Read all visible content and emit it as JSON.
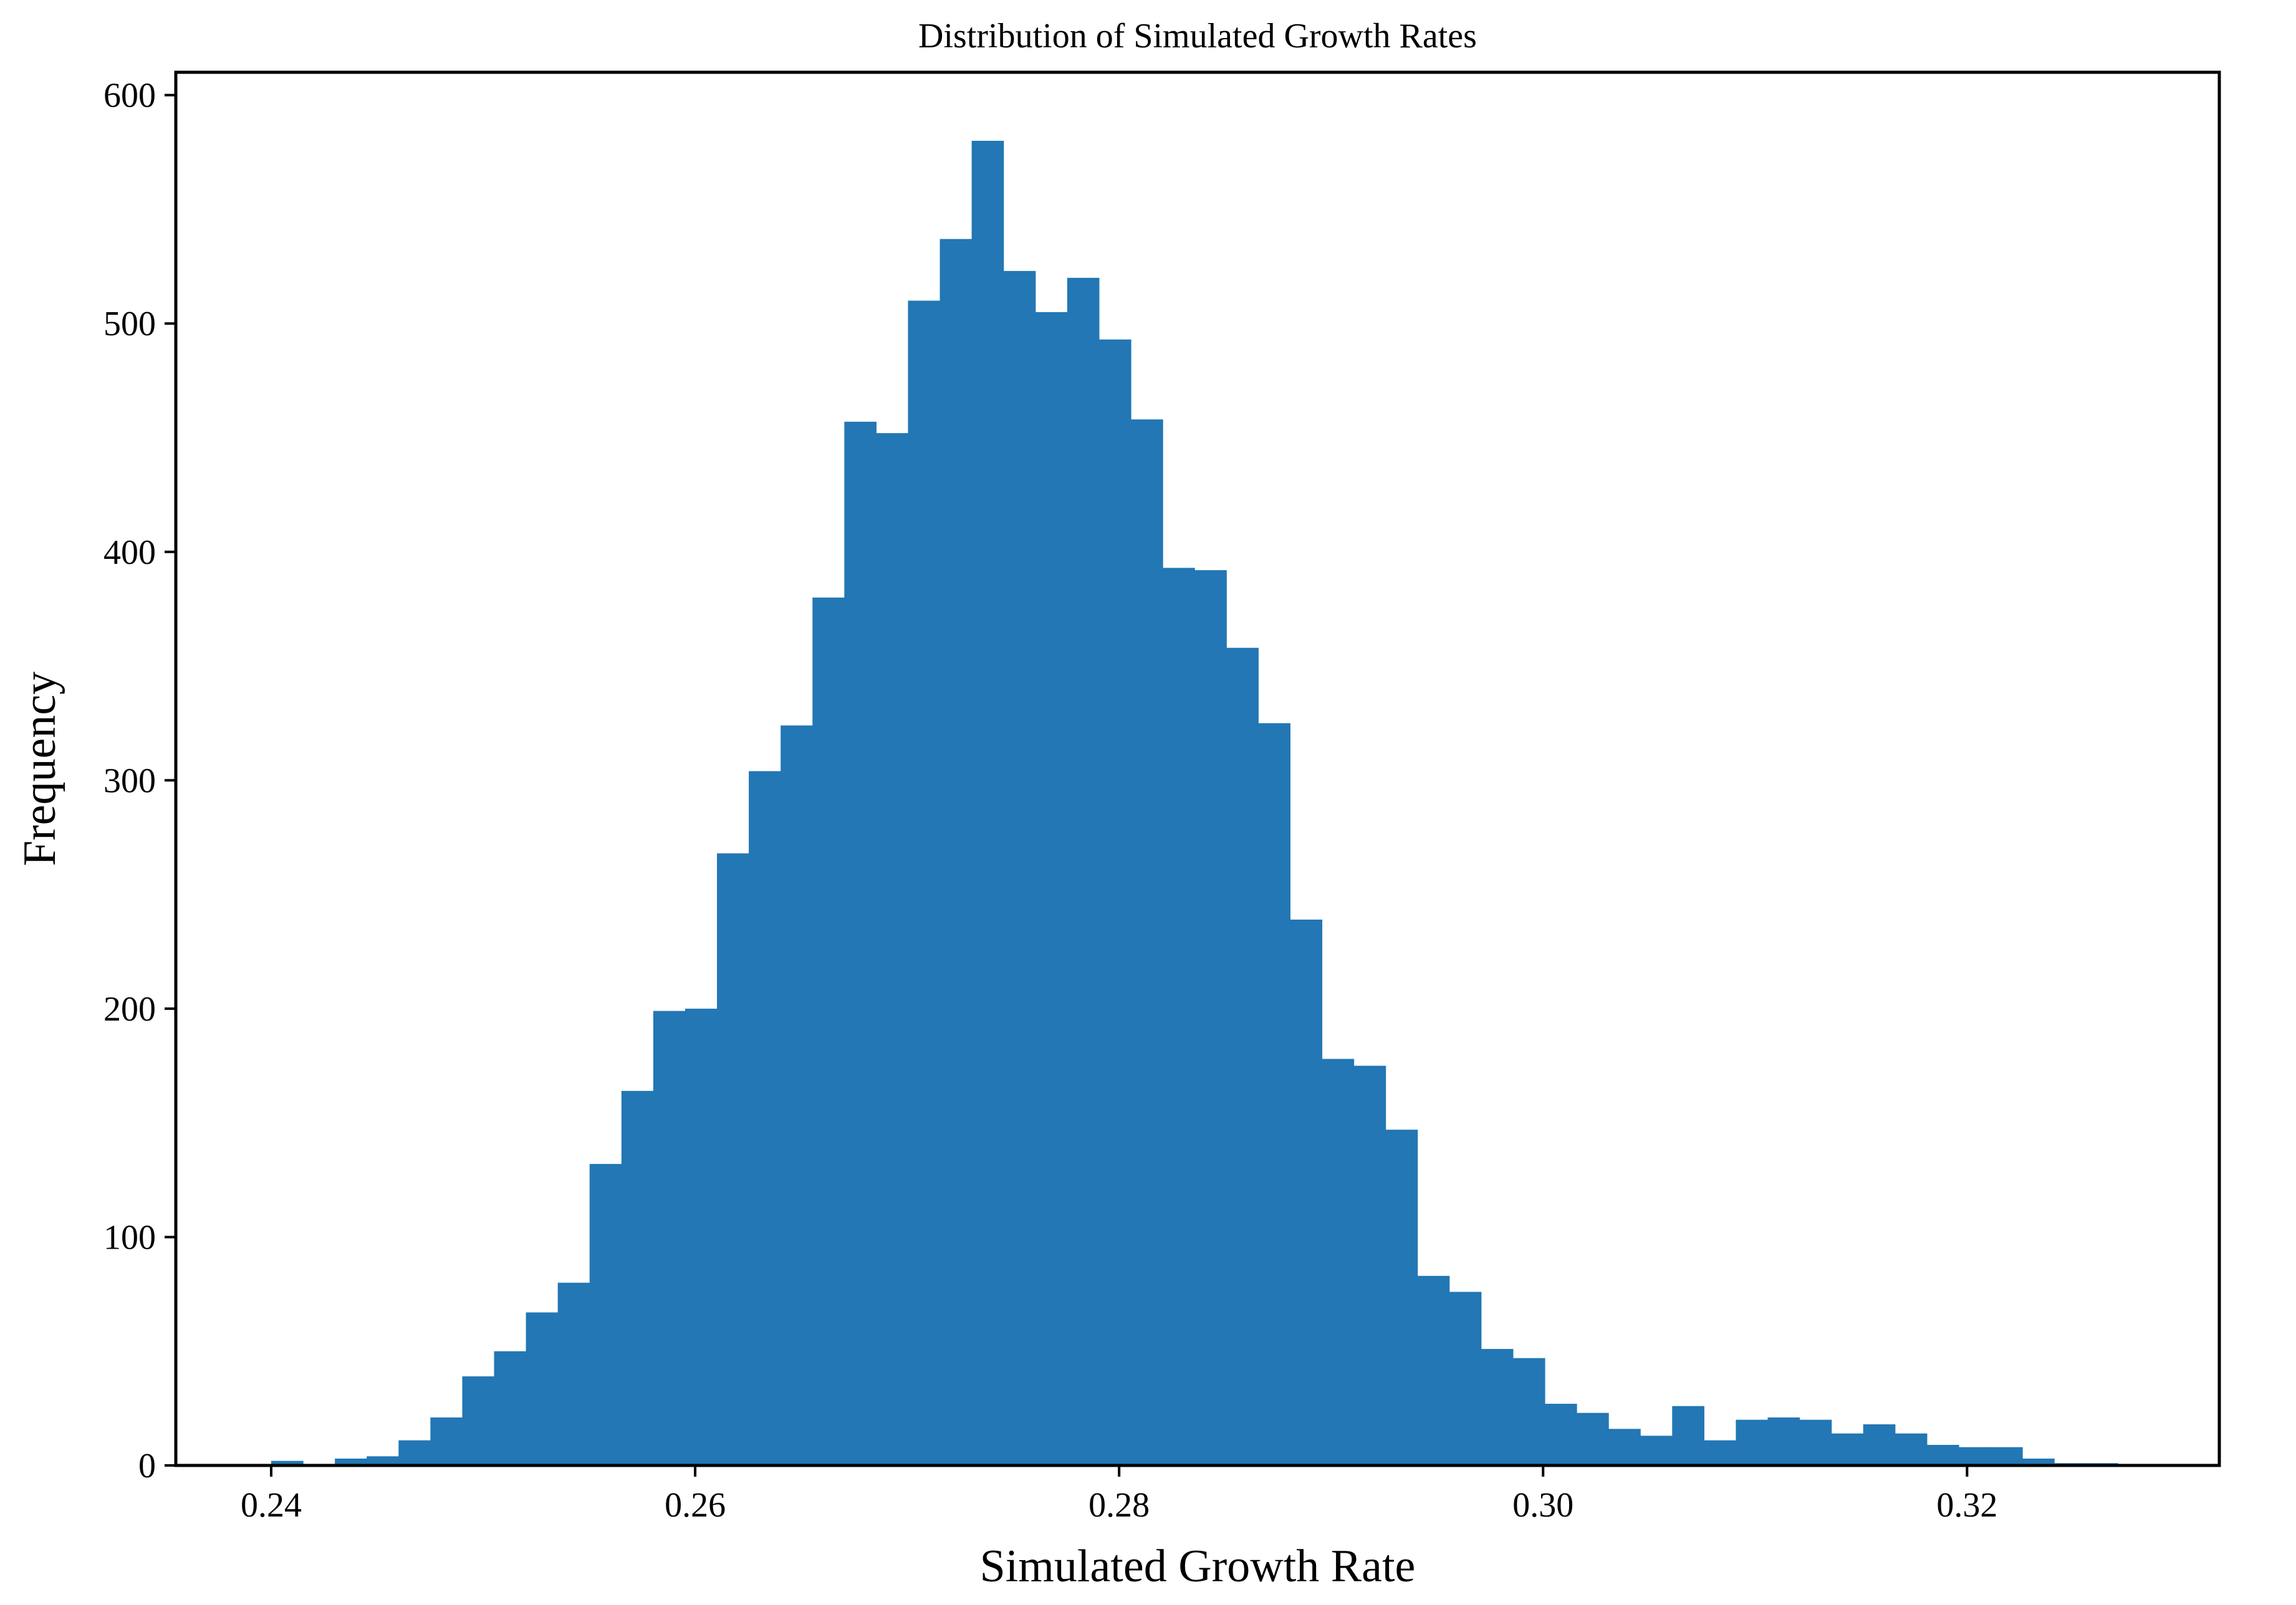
{
  "chart_data": {
    "type": "bar",
    "title": "Distribution of Simulated Growth Rates",
    "xlabel": "Simulated Growth Rate",
    "ylabel": "Frequency",
    "xlim": [
      0.2355,
      0.3319
    ],
    "ylim": [
      0,
      610
    ],
    "x_ticks": [
      0.24,
      0.26,
      0.28,
      0.3,
      0.32
    ],
    "x_tick_labels": [
      "0.24",
      "0.26",
      "0.28",
      "0.30",
      "0.32"
    ],
    "y_ticks": [
      0,
      100,
      200,
      300,
      400,
      500,
      600
    ],
    "y_tick_labels": [
      "0",
      "100",
      "200",
      "300",
      "400",
      "500",
      "600"
    ],
    "bin_start": 0.24,
    "bin_width": 0.001502,
    "values": [
      2,
      0,
      3,
      4,
      11,
      21,
      39,
      50,
      67,
      80,
      132,
      164,
      199,
      200,
      268,
      304,
      324,
      380,
      457,
      452,
      510,
      537,
      580,
      523,
      505,
      520,
      493,
      458,
      393,
      392,
      358,
      325,
      239,
      178,
      175,
      147,
      83,
      76,
      51,
      47,
      27,
      23,
      16,
      13,
      26,
      11,
      20,
      21,
      20,
      14,
      18,
      14,
      9,
      8,
      8,
      3,
      1,
      1
    ],
    "bar_color": "#2277b4",
    "grid": false,
    "legend": "none"
  }
}
